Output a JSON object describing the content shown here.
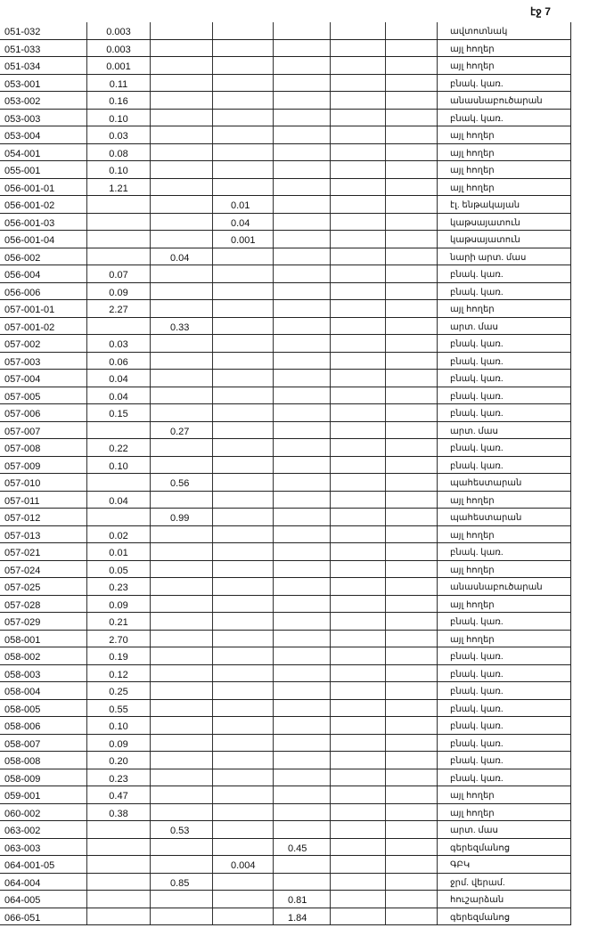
{
  "page_number": "էջ 7",
  "rows": [
    {
      "code": "051-032",
      "col": 1,
      "value": "0.003",
      "use": "ավտոտնակ"
    },
    {
      "code": "051-033",
      "col": 1,
      "value": "0.003",
      "use": "այլ հողեր"
    },
    {
      "code": "051-034",
      "col": 1,
      "value": "0.001",
      "use": "այլ հողեր"
    },
    {
      "code": "053-001",
      "col": 1,
      "value": "0.11",
      "use": "բնակ. կառ."
    },
    {
      "code": "053-002",
      "col": 1,
      "value": "0.16",
      "use": "անասնաբուծարան"
    },
    {
      "code": "053-003",
      "col": 1,
      "value": "0.10",
      "use": "բնակ. կառ."
    },
    {
      "code": "053-004",
      "col": 1,
      "value": "0.03",
      "use": "այլ հողեր"
    },
    {
      "code": "054-001",
      "col": 1,
      "value": "0.08",
      "use": "այլ հողեր"
    },
    {
      "code": "055-001",
      "col": 1,
      "value": "0.10",
      "use": "այլ հողեր"
    },
    {
      "code": "056-001-01",
      "col": 1,
      "value": "1.21",
      "use": "այլ հողեր"
    },
    {
      "code": "056-001-02",
      "col": 3,
      "value": "0.01",
      "use": "էլ. ենթակայան"
    },
    {
      "code": "056-001-03",
      "col": 3,
      "value": "0.04",
      "use": "կաթսայատուն"
    },
    {
      "code": "056-001-04",
      "col": 3,
      "value": "0.001",
      "use": "կաթսայատուն"
    },
    {
      "code": "056-002",
      "col": 2,
      "value": "0.04",
      "use": "նարի արտ. մաս"
    },
    {
      "code": "056-004",
      "col": 1,
      "value": "0.07",
      "use": "բնակ. կառ."
    },
    {
      "code": "056-006",
      "col": 1,
      "value": "0.09",
      "use": "բնակ. կառ."
    },
    {
      "code": "057-001-01",
      "col": 1,
      "value": "2.27",
      "use": "այլ հողեր"
    },
    {
      "code": "057-001-02",
      "col": 2,
      "value": "0.33",
      "use": "արտ. մաս"
    },
    {
      "code": "057-002",
      "col": 1,
      "value": "0.03",
      "use": "բնակ. կառ."
    },
    {
      "code": "057-003",
      "col": 1,
      "value": "0.06",
      "use": "բնակ. կառ."
    },
    {
      "code": "057-004",
      "col": 1,
      "value": "0.04",
      "use": "բնակ. կառ."
    },
    {
      "code": "057-005",
      "col": 1,
      "value": "0.04",
      "use": "բնակ. կառ."
    },
    {
      "code": "057-006",
      "col": 1,
      "value": "0.15",
      "use": "բնակ. կառ."
    },
    {
      "code": "057-007",
      "col": 2,
      "value": "0.27",
      "use": "արտ. մաս"
    },
    {
      "code": "057-008",
      "col": 1,
      "value": "0.22",
      "use": "բնակ. կառ."
    },
    {
      "code": "057-009",
      "col": 1,
      "value": "0.10",
      "use": "բնակ. կառ."
    },
    {
      "code": "057-010",
      "col": 2,
      "value": "0.56",
      "use": "պահեստարան"
    },
    {
      "code": "057-011",
      "col": 1,
      "value": "0.04",
      "use": "այլ հողեր"
    },
    {
      "code": "057-012",
      "col": 2,
      "value": "0.99",
      "use": "պահեստարան"
    },
    {
      "code": "057-013",
      "col": 1,
      "value": "0.02",
      "use": "այլ հողեր"
    },
    {
      "code": "057-021",
      "col": 1,
      "value": "0.01",
      "use": "բնակ. կառ."
    },
    {
      "code": "057-024",
      "col": 1,
      "value": "0.05",
      "use": "այլ հողեր"
    },
    {
      "code": "057-025",
      "col": 1,
      "value": "0.23",
      "use": "անասնաբուծարան"
    },
    {
      "code": "057-028",
      "col": 1,
      "value": "0.09",
      "use": "այլ հողեր"
    },
    {
      "code": "057-029",
      "col": 1,
      "value": "0.21",
      "use": "բնակ. կառ."
    },
    {
      "code": "058-001",
      "col": 1,
      "value": "2.70",
      "use": "այլ հողեր"
    },
    {
      "code": "058-002",
      "col": 1,
      "value": "0.19",
      "use": "բնակ. կառ."
    },
    {
      "code": "058-003",
      "col": 1,
      "value": "0.12",
      "use": "բնակ. կառ."
    },
    {
      "code": "058-004",
      "col": 1,
      "value": "0.25",
      "use": "բնակ. կառ."
    },
    {
      "code": "058-005",
      "col": 1,
      "value": "0.55",
      "use": "բնակ. կառ."
    },
    {
      "code": "058-006",
      "col": 1,
      "value": "0.10",
      "use": "բնակ. կառ."
    },
    {
      "code": "058-007",
      "col": 1,
      "value": "0.09",
      "use": "բնակ. կառ."
    },
    {
      "code": "058-008",
      "col": 1,
      "value": "0.20",
      "use": "բնակ. կառ."
    },
    {
      "code": "058-009",
      "col": 1,
      "value": "0.23",
      "use": "բնակ. կառ."
    },
    {
      "code": "059-001",
      "col": 1,
      "value": "0.47",
      "use": "այլ հողեր"
    },
    {
      "code": "060-002",
      "col": 1,
      "value": "0.38",
      "use": "այլ հողեր"
    },
    {
      "code": "063-002",
      "col": 2,
      "value": "0.53",
      "use": "արտ. մաս"
    },
    {
      "code": "063-003",
      "col": 4,
      "value": "0.45",
      "use": "գերեզմանոց"
    },
    {
      "code": "064-001-05",
      "col": 3,
      "value": "0.004",
      "use": "ԳԲԿ"
    },
    {
      "code": "064-004",
      "col": 2,
      "value": "0.85",
      "use": "ջրմ. վերամ."
    },
    {
      "code": "064-005",
      "col": 4,
      "value": "0.81",
      "use": "հուշարձան"
    },
    {
      "code": "066-051",
      "col": 4,
      "value": "1.84",
      "use": "գերեզմանոց"
    }
  ]
}
